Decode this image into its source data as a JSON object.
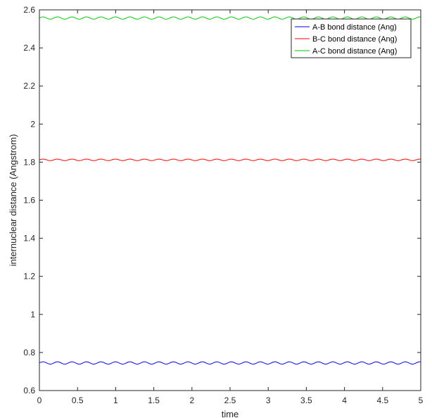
{
  "chart_data": {
    "type": "line",
    "title": "",
    "xlabel": "time",
    "ylabel": "internuclear distance (Angstrom)",
    "xlim": [
      0,
      5
    ],
    "ylim": [
      0.6,
      2.6
    ],
    "xticks": [
      0,
      0.5,
      1,
      1.5,
      2,
      2.5,
      3,
      3.5,
      4,
      4.5,
      5
    ],
    "xtick_labels": [
      "0",
      "0.5",
      "1",
      "1.5",
      "2",
      "2.5",
      "3",
      "3.5",
      "4",
      "4.5",
      "5"
    ],
    "yticks": [
      0.6,
      0.8,
      1,
      1.2,
      1.4,
      1.6,
      1.8,
      2,
      2.2,
      2.4,
      2.6
    ],
    "ytick_labels": [
      "0.6",
      "0.8",
      "1",
      "1.2",
      "1.4",
      "1.6",
      "1.8",
      "2",
      "2.2",
      "2.4",
      "2.6"
    ],
    "grid": false,
    "legend_position": "top-right",
    "series": [
      {
        "name": "A-B bond distance (Ang)",
        "color": "#0000ff",
        "mean": 0.745,
        "amplitude": 0.006,
        "period": 0.19
      },
      {
        "name": "B-C bond distance (Ang)",
        "color": "#ff0000",
        "mean": 1.812,
        "amplitude": 0.004,
        "period": 0.19
      },
      {
        "name": "A-C bond distance (Ang)",
        "color": "#00cc00",
        "mean": 2.557,
        "amplitude": 0.006,
        "period": 0.19
      }
    ]
  }
}
